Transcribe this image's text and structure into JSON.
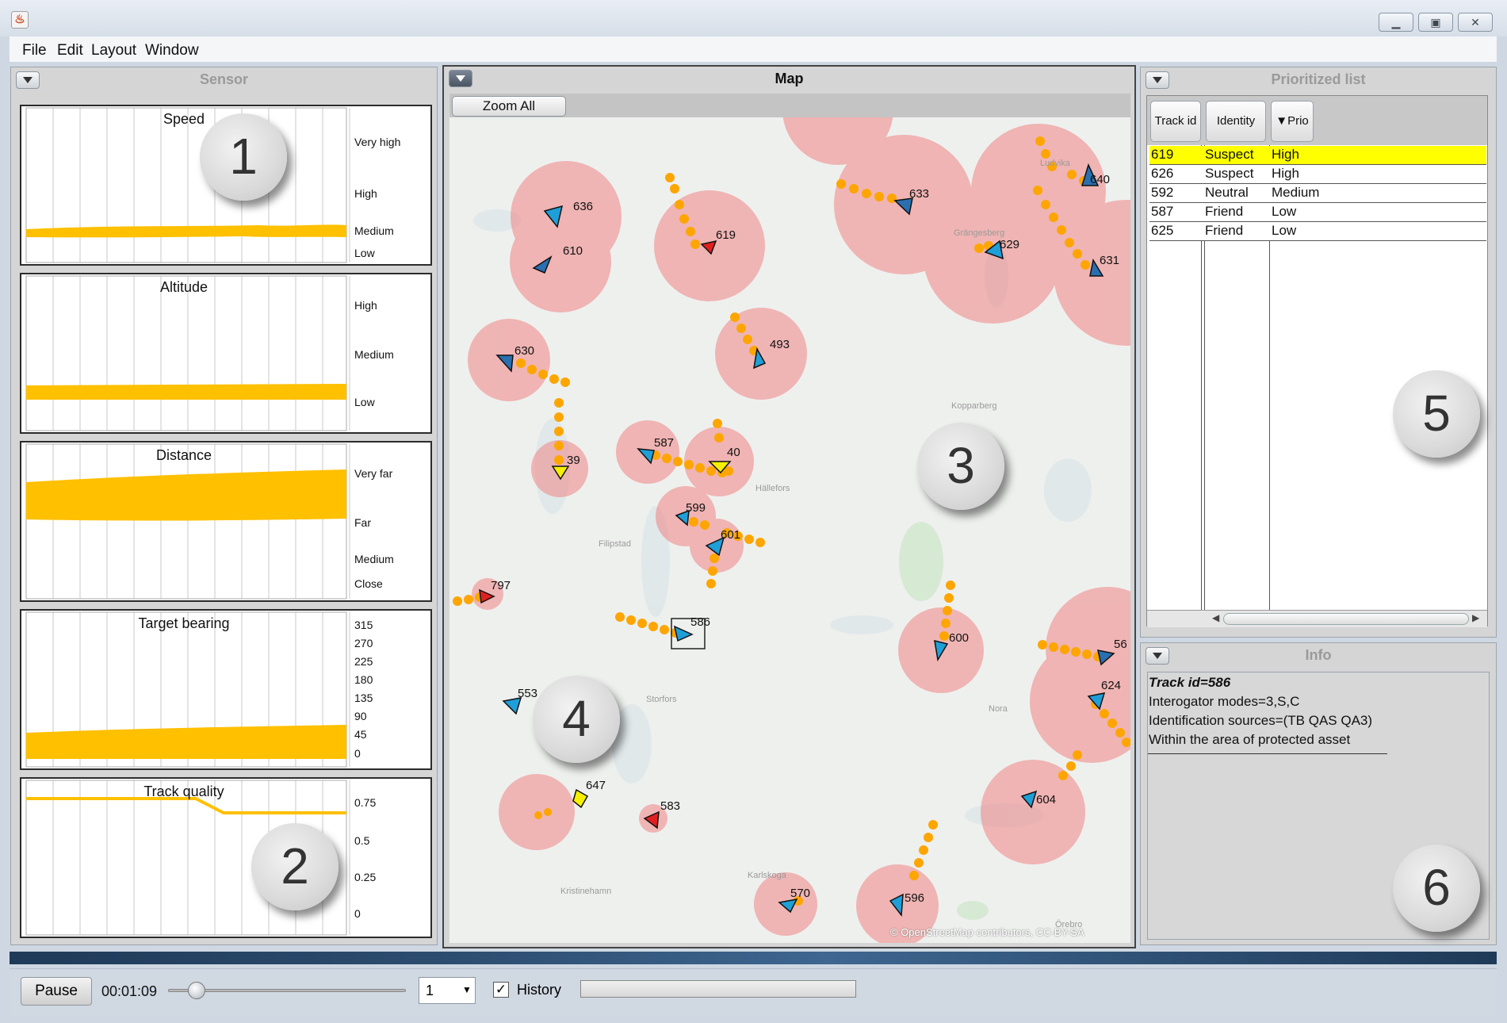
{
  "window": {
    "app_icon": "java-icon",
    "minimize_icon": "minimize-icon",
    "maximize_icon": "maximize-icon",
    "close_icon": "close-icon"
  },
  "menu": [
    "File",
    "Edit",
    "Layout",
    "Window"
  ],
  "sensor": {
    "title": "Sensor",
    "charts": [
      {
        "title": "Speed",
        "levels": [
          "Very high",
          "High",
          "Medium",
          "Low"
        ]
      },
      {
        "title": "Altitude",
        "levels": [
          "High",
          "Medium",
          "Low"
        ]
      },
      {
        "title": "Distance",
        "levels": [
          "Very far",
          "Far",
          "Medium",
          "Close"
        ]
      },
      {
        "title": "Target bearing",
        "levels": [
          "315",
          "270",
          "225",
          "180",
          "135",
          "90",
          "45",
          "0"
        ]
      },
      {
        "title": "Track quality",
        "levels": [
          "0.75",
          "0.5",
          "0.25",
          "0"
        ]
      }
    ],
    "accent": "#ffc000"
  },
  "map": {
    "title": "Map",
    "zoom_all": "Zoom All",
    "attribution": "© OpenStreetMap contributors, CC-BY-SA",
    "places": [
      "Ludvika",
      "Grängesberg",
      "Kopparberg",
      "Hällefors",
      "Filipstad",
      "Storfors",
      "Nora",
      "Kristinehamn",
      "Karlskoga",
      "Örebro"
    ],
    "tracks": [
      "636",
      "610",
      "619",
      "633",
      "640",
      "629",
      "631",
      "630",
      "493",
      "39",
      "587",
      "40",
      "599",
      "601",
      "797",
      "586",
      "600",
      "56",
      "553",
      "624",
      "647",
      "583",
      "604",
      "570",
      "596"
    ],
    "threat_color": "#f08080",
    "friend_color": "#1f9fd8",
    "history_color": "#ffa500"
  },
  "prioritized_list": {
    "title": "Prioritized list",
    "columns": [
      "Track id",
      "Identity",
      "▼Prio"
    ],
    "rows": [
      {
        "id": "619",
        "identity": "Suspect",
        "prio": "High",
        "selected": true
      },
      {
        "id": "626",
        "identity": "Suspect",
        "prio": "High"
      },
      {
        "id": "592",
        "identity": "Neutral",
        "prio": "Medium"
      },
      {
        "id": "587",
        "identity": "Friend",
        "prio": "Low"
      },
      {
        "id": "625",
        "identity": "Friend",
        "prio": "Low"
      }
    ],
    "highlight_color": "#ffff00"
  },
  "info": {
    "title": "Info",
    "lines": [
      "Track id=586",
      "Interogator modes=3,S,C",
      "Identification sources=(TB QAS QA3)",
      "Within the area of protected asset"
    ]
  },
  "callouts": [
    "1",
    "2",
    "3",
    "4",
    "5",
    "6"
  ],
  "playback": {
    "pause": "Pause",
    "time": "00:01:09",
    "progress": 0.12,
    "speed": "1",
    "history_label": "History",
    "history_checked": true
  }
}
